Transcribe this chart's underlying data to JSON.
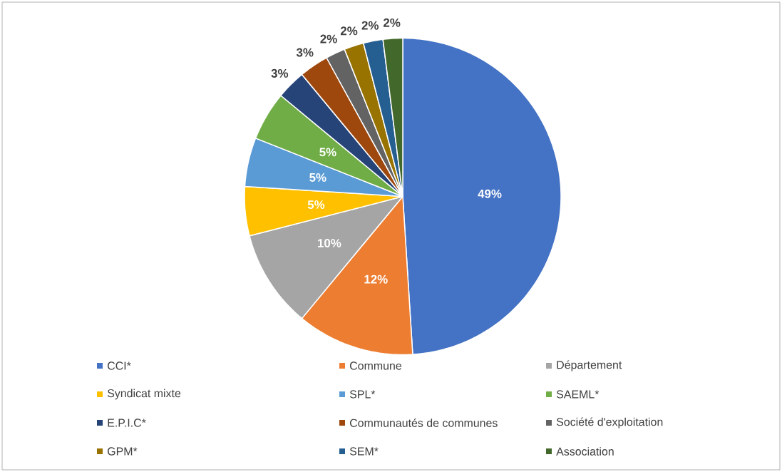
{
  "chart_data": {
    "type": "pie",
    "categories": [
      "CCI*",
      "Commune",
      "Département",
      "Syndicat mixte",
      "SPL*",
      "SAEML*",
      "E.P.I.C*",
      "Communautés de communes",
      "Société d'exploitation",
      "GPM*",
      "SEM*",
      "Association"
    ],
    "values": [
      49,
      12,
      10,
      5,
      5,
      5,
      3,
      3,
      2,
      2,
      2,
      2
    ],
    "colors": [
      "#4472c4",
      "#ed7d31",
      "#a5a5a5",
      "#ffc000",
      "#5b9bd5",
      "#70ad47",
      "#264478",
      "#9e480e",
      "#636363",
      "#997300",
      "#255e91",
      "#43682b"
    ],
    "value_labels": [
      "49%",
      "12%",
      "10%",
      "5%",
      "5%",
      "5%",
      "3%",
      "3%",
      "2%",
      "2%",
      "2%",
      "2%"
    ],
    "legend": "bottom"
  }
}
